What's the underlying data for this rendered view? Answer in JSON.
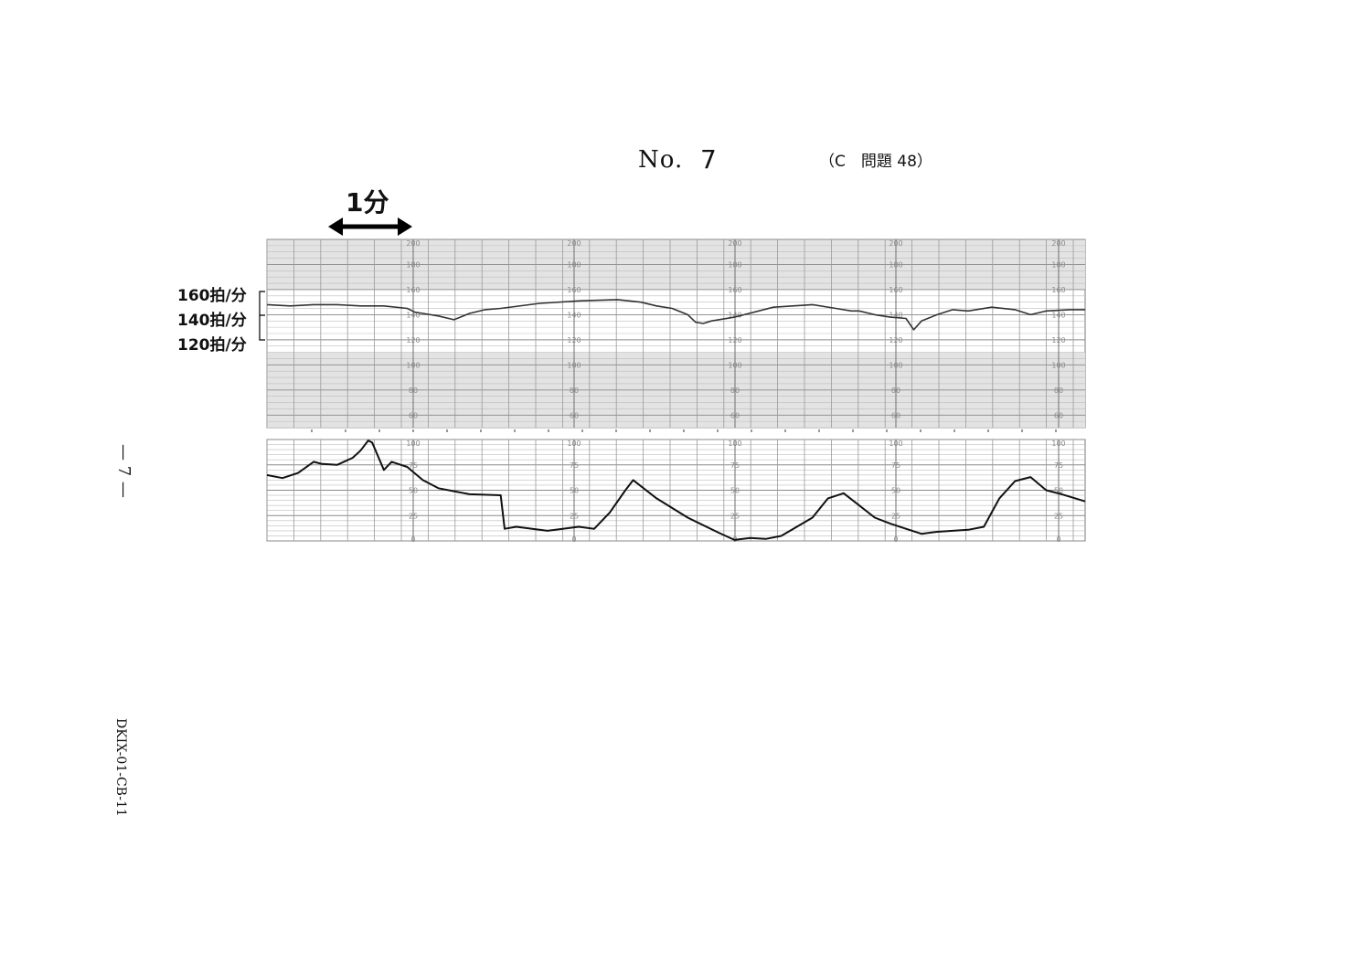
{
  "header": {
    "no_label": "No.",
    "no_value": "7",
    "question_ref": "（C　問題 48）"
  },
  "time_scale": {
    "label": "1分"
  },
  "fhr_labels": [
    "160拍/分",
    "140拍/分",
    "120拍/分"
  ],
  "side": {
    "page_number": "— 7 —",
    "doc_code": "DKIX-01-CB-11"
  },
  "chart_data": [
    {
      "type": "line",
      "panel": "fetal-heart-rate",
      "ylim": [
        50,
        200
      ],
      "y_tick_labels": [
        "200",
        "180",
        "160",
        "140",
        "120",
        "100",
        "80",
        "60"
      ],
      "normal_band": [
        110,
        160
      ],
      "x_unit": "minutes",
      "xlim": [
        0,
        10.5
      ],
      "series": [
        {
          "x": [
            0,
            0.3,
            0.6,
            0.9,
            1.2,
            1.5,
            1.8,
            1.9,
            2.0,
            2.2,
            2.4,
            2.6,
            2.8,
            3.0,
            3.5,
            4.0,
            4.5,
            4.8,
            5.0,
            5.2,
            5.4,
            5.5,
            5.6,
            5.7,
            6.0,
            6.5,
            7.0,
            7.3,
            7.5,
            7.6,
            7.8,
            8.0,
            8.2,
            8.3,
            8.4,
            8.6,
            8.8,
            9.0,
            9.3,
            9.6,
            9.8,
            10.0,
            10.3,
            10.5
          ],
          "values": [
            148,
            147,
            148,
            148,
            147,
            147,
            145,
            142,
            141,
            139,
            136,
            141,
            144,
            145,
            149,
            151,
            152,
            150,
            147,
            145,
            140,
            134,
            133,
            135,
            138,
            146,
            148,
            145,
            143,
            143,
            140,
            138,
            137,
            128,
            135,
            140,
            144,
            143,
            146,
            144,
            140,
            143,
            144,
            144
          ]
        }
      ]
    },
    {
      "type": "line",
      "panel": "uterine-contractions",
      "ylim": [
        0,
        100
      ],
      "y_tick_labels": [
        "100",
        "75",
        "50",
        "25",
        "0"
      ],
      "x_unit": "minutes",
      "xlim": [
        0,
        10.5
      ],
      "series": [
        {
          "x": [
            0,
            0.2,
            0.4,
            0.6,
            0.7,
            0.9,
            1.1,
            1.2,
            1.3,
            1.35,
            1.5,
            1.6,
            1.8,
            2.0,
            2.2,
            2.4,
            2.6,
            3.0,
            3.05,
            3.2,
            3.6,
            4.0,
            4.2,
            4.4,
            4.6,
            4.7,
            5.0,
            5.4,
            5.8,
            6.0,
            6.2,
            6.4,
            6.6,
            7.0,
            7.2,
            7.4,
            7.6,
            7.8,
            8.0,
            8.2,
            8.4,
            8.6,
            8.8,
            9.0,
            9.2,
            9.4,
            9.6,
            9.8,
            10.0,
            10.2,
            10.5
          ],
          "values": [
            65,
            62,
            67,
            78,
            76,
            75,
            82,
            89,
            99,
            97,
            70,
            78,
            73,
            60,
            52,
            49,
            46,
            45,
            12,
            14,
            10,
            14,
            12,
            28,
            50,
            60,
            42,
            23,
            8,
            1,
            3,
            2,
            5,
            23,
            42,
            47,
            35,
            23,
            17,
            12,
            7,
            9,
            10,
            11,
            14,
            42,
            59,
            63,
            50,
            46,
            39
          ]
        }
      ]
    }
  ]
}
